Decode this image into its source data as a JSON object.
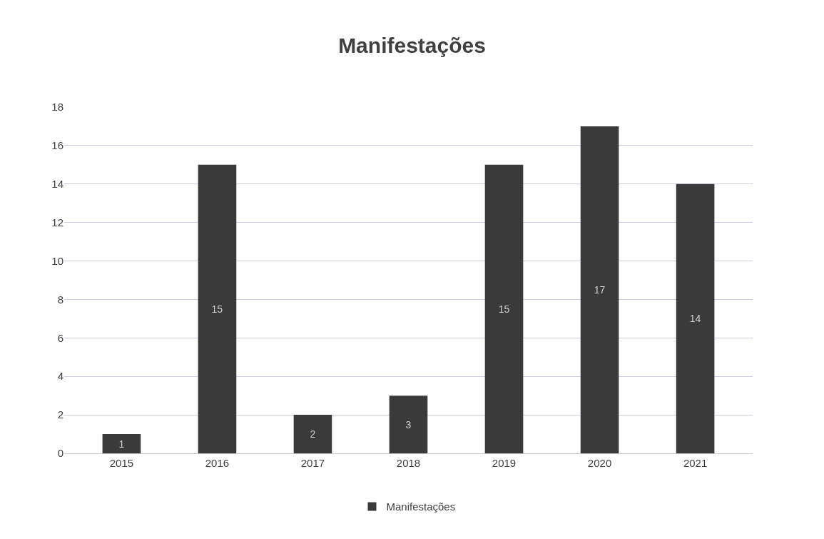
{
  "chart_data": {
    "type": "bar",
    "title": "Manifestações",
    "categories": [
      "2015",
      "2016",
      "2017",
      "2018",
      "2019",
      "2020",
      "2021"
    ],
    "series": [
      {
        "name": "Manifestações",
        "color": "#3a3a3a",
        "values": [
          1,
          15,
          2,
          3,
          15,
          17,
          14
        ]
      }
    ],
    "ylim": [
      0,
      18
    ],
    "yticks": [
      0,
      2,
      4,
      6,
      8,
      10,
      12,
      14,
      16,
      18
    ],
    "grid": "y",
    "legend": "bottom",
    "data_labels": true
  }
}
